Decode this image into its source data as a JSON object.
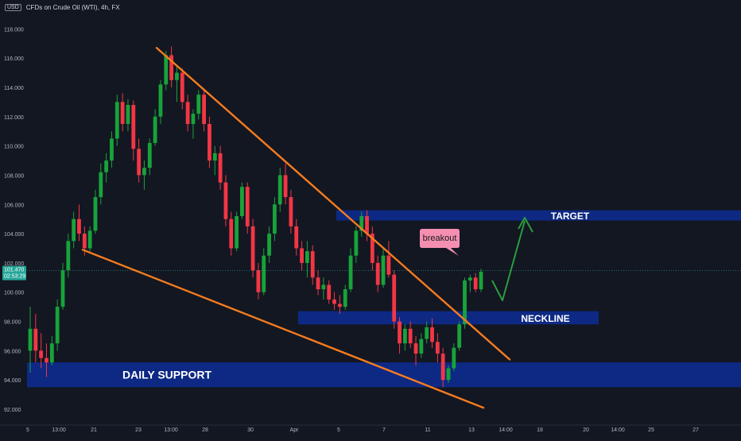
{
  "header": {
    "currency_badge": "USD",
    "symbol_title": "CFDs on Crude Oil (WTI), 4h, FX"
  },
  "colors": {
    "background": "#131722",
    "up": "#26a69a",
    "up_candle": "#18a33a",
    "down": "#f23645",
    "trendline": "#f57c1f",
    "zone": "#0d2a8a",
    "arrow": "#2a9d3c",
    "callout_bg": "#f48fb1",
    "price_line": "#26a69a"
  },
  "current_price": {
    "value": "101.470",
    "countdown": "02:53:29"
  },
  "chart_data": {
    "type": "candlestick",
    "title": "CFDs on Crude Oil (WTI), 4h, FX",
    "ylim": [
      91,
      119
    ],
    "y_ticks": [
      "92.000",
      "94.000",
      "96.000",
      "98.000",
      "100.000",
      "102.000",
      "104.000",
      "106.000",
      "108.000",
      "110.000",
      "112.000",
      "114.000",
      "116.000",
      "118.000"
    ],
    "x_ticks": [
      "5",
      "13:00",
      "21",
      "23",
      "13:00",
      "28",
      "30",
      "Apr",
      "5",
      "7",
      "11",
      "13",
      "14:00",
      "18",
      "20",
      "14:00",
      "25",
      "27"
    ],
    "zones": [
      {
        "label": "DAILY SUPPORT",
        "y_top": 95.2,
        "y_bottom": 93.5
      },
      {
        "label": "NECKLINE",
        "y_top": 98.7,
        "y_bottom": 97.8
      },
      {
        "label": "TARGET",
        "y_top": 105.6,
        "y_bottom": 104.9
      }
    ],
    "annotations": [
      {
        "text": "breakout"
      }
    ],
    "trendlines": [
      {
        "name": "upper",
        "start_price": 116.7,
        "end_price": 95.4
      },
      {
        "name": "lower",
        "start_price": 102.9,
        "end_price": 92.1
      }
    ],
    "candles": [
      [
        96.0,
        99.0,
        94.5,
        97.5
      ],
      [
        97.5,
        98.5,
        95.2,
        96.0
      ],
      [
        96.0,
        97.2,
        94.8,
        95.5
      ],
      [
        95.5,
        96.5,
        94.2,
        95.2
      ],
      [
        95.2,
        97.0,
        95.0,
        96.5
      ],
      [
        96.5,
        99.5,
        96.0,
        99.0
      ],
      [
        99.0,
        102.0,
        98.8,
        101.5
      ],
      [
        101.5,
        104.0,
        101.0,
        103.5
      ],
      [
        103.5,
        105.5,
        103.0,
        105.0
      ],
      [
        105.0,
        106.0,
        103.5,
        104.0
      ],
      [
        104.0,
        104.5,
        102.5,
        103.0
      ],
      [
        103.0,
        104.5,
        102.8,
        104.2
      ],
      [
        104.2,
        107.0,
        104.0,
        106.5
      ],
      [
        106.5,
        108.8,
        106.0,
        108.2
      ],
      [
        108.2,
        109.5,
        107.5,
        109.0
      ],
      [
        109.0,
        111.0,
        108.5,
        110.5
      ],
      [
        110.5,
        113.5,
        110.0,
        113.0
      ],
      [
        113.0,
        113.6,
        111.0,
        111.5
      ],
      [
        111.5,
        113.2,
        111.0,
        112.8
      ],
      [
        112.8,
        113.1,
        109.0,
        109.8
      ],
      [
        109.8,
        110.5,
        107.5,
        108.0
      ],
      [
        108.0,
        109.0,
        107.0,
        108.5
      ],
      [
        108.5,
        110.5,
        108.0,
        110.2
      ],
      [
        110.2,
        112.5,
        110.0,
        112.0
      ],
      [
        112.0,
        114.5,
        111.5,
        114.2
      ],
      [
        114.2,
        116.5,
        113.8,
        116.2
      ],
      [
        116.2,
        116.8,
        114.0,
        114.5
      ],
      [
        114.5,
        115.5,
        113.0,
        115.0
      ],
      [
        115.0,
        115.3,
        112.5,
        113.0
      ],
      [
        113.0,
        113.5,
        111.0,
        111.5
      ],
      [
        111.5,
        112.5,
        110.5,
        112.2
      ],
      [
        112.2,
        113.8,
        111.8,
        113.5
      ],
      [
        113.5,
        113.8,
        111.0,
        111.5
      ],
      [
        111.5,
        112.0,
        108.5,
        109.0
      ],
      [
        109.0,
        110.0,
        108.0,
        109.5
      ],
      [
        109.5,
        110.0,
        107.0,
        107.5
      ],
      [
        107.5,
        108.0,
        104.5,
        105.0
      ],
      [
        105.0,
        105.5,
        102.5,
        103.0
      ],
      [
        103.0,
        105.5,
        102.8,
        105.2
      ],
      [
        105.2,
        107.5,
        105.0,
        107.2
      ],
      [
        107.2,
        107.5,
        104.0,
        104.5
      ],
      [
        104.5,
        105.0,
        101.0,
        101.5
      ],
      [
        101.5,
        102.0,
        99.5,
        100.0
      ],
      [
        100.0,
        103.0,
        99.8,
        102.5
      ],
      [
        102.5,
        104.5,
        102.0,
        104.0
      ],
      [
        104.0,
        106.5,
        103.5,
        106.0
      ],
      [
        106.0,
        108.5,
        105.5,
        108.0
      ],
      [
        108.0,
        108.8,
        106.0,
        106.5
      ],
      [
        106.5,
        107.0,
        104.0,
        104.5
      ],
      [
        104.5,
        105.0,
        102.5,
        103.0
      ],
      [
        103.0,
        103.5,
        101.5,
        102.0
      ],
      [
        102.0,
        103.5,
        101.0,
        102.8
      ],
      [
        102.8,
        103.2,
        100.5,
        101.0
      ],
      [
        101.0,
        101.5,
        99.8,
        100.2
      ],
      [
        100.2,
        101.0,
        99.5,
        100.5
      ],
      [
        100.5,
        100.8,
        99.2,
        99.5
      ],
      [
        99.5,
        100.0,
        98.8,
        99.2
      ],
      [
        99.2,
        99.8,
        98.5,
        99.0
      ],
      [
        99.0,
        100.5,
        98.8,
        100.2
      ],
      [
        100.2,
        103.0,
        100.0,
        102.5
      ],
      [
        102.5,
        104.5,
        102.0,
        104.2
      ],
      [
        104.2,
        105.5,
        103.8,
        105.2
      ],
      [
        105.2,
        105.6,
        103.5,
        104.0
      ],
      [
        104.0,
        104.5,
        101.5,
        102.0
      ],
      [
        102.0,
        102.5,
        100.0,
        100.5
      ],
      [
        100.5,
        103.0,
        100.3,
        102.5
      ],
      [
        102.5,
        103.5,
        101.0,
        101.2
      ],
      [
        101.2,
        101.5,
        97.5,
        98.0
      ],
      [
        98.0,
        98.3,
        95.8,
        96.5
      ],
      [
        96.5,
        97.8,
        96.0,
        97.5
      ],
      [
        97.5,
        98.0,
        96.2,
        96.5
      ],
      [
        96.5,
        97.0,
        95.0,
        95.8
      ],
      [
        95.8,
        97.2,
        95.5,
        96.8
      ],
      [
        96.8,
        98.0,
        96.5,
        97.6
      ],
      [
        97.6,
        98.2,
        96.2,
        96.6
      ],
      [
        96.6,
        97.2,
        95.2,
        95.8
      ],
      [
        95.8,
        96.2,
        93.5,
        94.0
      ],
      [
        94.0,
        95.0,
        93.8,
        94.8
      ],
      [
        94.8,
        96.5,
        94.6,
        96.2
      ],
      [
        96.2,
        98.0,
        96.0,
        97.8
      ],
      [
        97.8,
        101.0,
        97.5,
        100.8
      ],
      [
        100.8,
        101.2,
        100.0,
        101.0
      ],
      [
        101.0,
        101.3,
        100.0,
        100.2
      ],
      [
        100.2,
        101.6,
        100.0,
        101.4
      ]
    ]
  },
  "price_axis": {
    "current_label": "101.470",
    "countdown_label": "02:53:29"
  }
}
